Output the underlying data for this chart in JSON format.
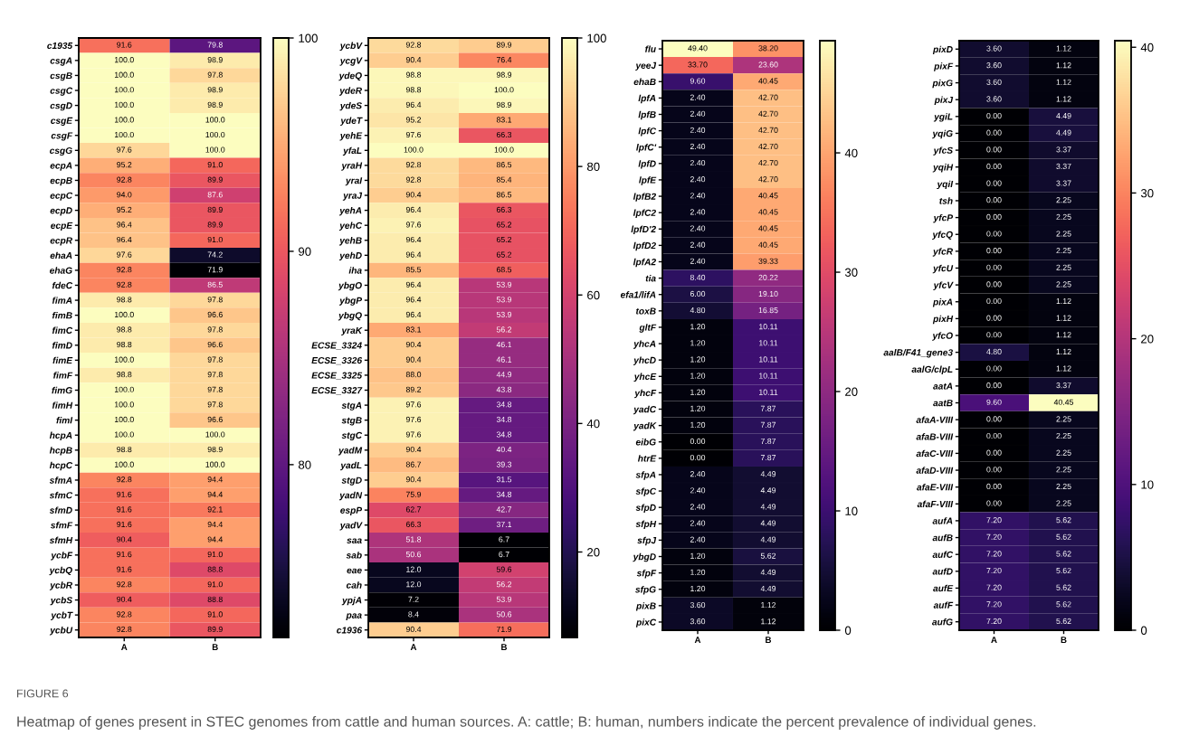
{
  "chart_data": [
    {
      "type": "heatmap",
      "annotations": [
        "FIGURE 6",
        "Heatmap of genes present in STEC genomes from cattle and human sources. A: cattle; B: human, numbers indicate the percent prevalence of individual genes."
      ],
      "categories": [
        "A",
        "B"
      ],
      "y_categories": [
        "c1935",
        "csgA",
        "csgB",
        "csgC",
        "csgD",
        "csgE",
        "csgF",
        "csgG",
        "ecpA",
        "ecpB",
        "ecpC",
        "ecpD",
        "ecpE",
        "ecpR",
        "ehaA",
        "ehaG",
        "fdeC",
        "fimA",
        "fimB",
        "fimC",
        "fimD",
        "fimE",
        "fimF",
        "fimG",
        "fimH",
        "fimI",
        "hcpA",
        "hcpB",
        "hcpC",
        "sfmA",
        "sfmC",
        "sfmD",
        "sfmF",
        "sfmH",
        "ycbF",
        "ycbQ",
        "ycbR",
        "ycbS",
        "ycbT",
        "ycbU"
      ],
      "cells": [
        [
          91.6,
          79.8
        ],
        [
          100.0,
          98.9
        ],
        [
          100.0,
          97.8
        ],
        [
          100.0,
          98.9
        ],
        [
          100.0,
          98.9
        ],
        [
          100.0,
          100.0
        ],
        [
          100.0,
          100.0
        ],
        [
          97.6,
          100.0
        ],
        [
          95.2,
          91.0
        ],
        [
          92.8,
          89.9
        ],
        [
          94.0,
          87.6
        ],
        [
          95.2,
          89.9
        ],
        [
          96.4,
          89.9
        ],
        [
          96.4,
          91.0
        ],
        [
          97.6,
          74.2
        ],
        [
          92.8,
          71.9
        ],
        [
          92.8,
          86.5
        ],
        [
          98.8,
          97.8
        ],
        [
          100.0,
          96.6
        ],
        [
          98.8,
          97.8
        ],
        [
          98.8,
          96.6
        ],
        [
          100.0,
          97.8
        ],
        [
          98.8,
          97.8
        ],
        [
          100.0,
          97.8
        ],
        [
          100.0,
          97.8
        ],
        [
          100.0,
          96.6
        ],
        [
          100.0,
          100.0
        ],
        [
          98.8,
          98.9
        ],
        [
          100.0,
          100.0
        ],
        [
          92.8,
          94.4
        ],
        [
          91.6,
          94.4
        ],
        [
          91.6,
          92.1
        ],
        [
          91.6,
          94.4
        ],
        [
          90.4,
          94.4
        ],
        [
          91.6,
          91.0
        ],
        [
          91.6,
          88.8
        ],
        [
          92.8,
          91.0
        ],
        [
          90.4,
          88.8
        ],
        [
          92.8,
          91.0
        ],
        [
          92.8,
          89.9
        ]
      ],
      "cell_labels": [
        [
          "91.6",
          "79.8"
        ],
        [
          "100.0",
          "98.9"
        ],
        [
          "100.0",
          "97.8"
        ],
        [
          "100.0",
          "98.9"
        ],
        [
          "100.0",
          "98.9"
        ],
        [
          "100.0",
          "100.0"
        ],
        [
          "100.0",
          "100.0"
        ],
        [
          "97.6",
          "100.0"
        ],
        [
          "95.2",
          "91.0"
        ],
        [
          "92.8",
          "89.9"
        ],
        [
          "94.0",
          "87.6"
        ],
        [
          "95.2",
          "89.9"
        ],
        [
          "96.4",
          "89.9"
        ],
        [
          "96.4",
          "91.0"
        ],
        [
          "97.6",
          "74.2"
        ],
        [
          "92.8",
          "71.9"
        ],
        [
          "92.8",
          "86.5"
        ],
        [
          "98.8",
          "97.8"
        ],
        [
          "100.0",
          "96.6"
        ],
        [
          "98.8",
          "97.8"
        ],
        [
          "98.8",
          "96.6"
        ],
        [
          "100.0",
          "97.8"
        ],
        [
          "98.8",
          "97.8"
        ],
        [
          "100.0",
          "97.8"
        ],
        [
          "100.0",
          "97.8"
        ],
        [
          "100.0",
          "96.6"
        ],
        [
          "100.0",
          "100.0"
        ],
        [
          "98.8",
          "98.9"
        ],
        [
          "100.0",
          "100.0"
        ],
        [
          "92.8",
          "94.4"
        ],
        [
          "91.6",
          "94.4"
        ],
        [
          "91.6",
          "92.1"
        ],
        [
          "91.6",
          "94.4"
        ],
        [
          "90.4",
          "94.4"
        ],
        [
          "91.6",
          "91.0"
        ],
        [
          "91.6",
          "88.8"
        ],
        [
          "92.8",
          "91.0"
        ],
        [
          "90.4",
          "88.8"
        ],
        [
          "92.8",
          "91.0"
        ],
        [
          "92.8",
          "89.9"
        ]
      ],
      "clim": [
        71.9,
        100
      ],
      "cticks": [
        80,
        90,
        100
      ]
    },
    {
      "type": "heatmap",
      "categories": [
        "A",
        "B"
      ],
      "y_categories": [
        "ycbV",
        "ycgV",
        "ydeQ",
        "ydeR",
        "ydeS",
        "ydeT",
        "yehE",
        "yfaL",
        "yraH",
        "yraI",
        "yraJ",
        "yehA",
        "yehC",
        "yehB",
        "yehD",
        "iha",
        "ybgO",
        "ybgP",
        "ybgQ",
        "yraK",
        "ECSE_3324",
        "ECSE_3326",
        "ECSE_3325",
        "ECSE_3327",
        "stgA",
        "stgB",
        "stgC",
        "yadM",
        "yadL",
        "stgD",
        "yadN",
        "espP",
        "yadV",
        "saa",
        "sab",
        "eae",
        "cah",
        "ypjA",
        "paa",
        "c1936"
      ],
      "cells": [
        [
          92.8,
          89.9
        ],
        [
          90.4,
          76.4
        ],
        [
          98.8,
          98.9
        ],
        [
          98.8,
          100.0
        ],
        [
          96.4,
          98.9
        ],
        [
          95.2,
          83.1
        ],
        [
          97.6,
          66.3
        ],
        [
          100.0,
          100.0
        ],
        [
          92.8,
          86.5
        ],
        [
          92.8,
          85.4
        ],
        [
          90.4,
          86.5
        ],
        [
          96.4,
          66.3
        ],
        [
          97.6,
          65.2
        ],
        [
          96.4,
          65.2
        ],
        [
          96.4,
          65.2
        ],
        [
          85.5,
          68.5
        ],
        [
          96.4,
          53.9
        ],
        [
          96.4,
          53.9
        ],
        [
          96.4,
          53.9
        ],
        [
          83.1,
          56.2
        ],
        [
          90.4,
          46.1
        ],
        [
          90.4,
          46.1
        ],
        [
          88.0,
          44.9
        ],
        [
          89.2,
          43.8
        ],
        [
          97.6,
          34.8
        ],
        [
          97.6,
          34.8
        ],
        [
          97.6,
          34.8
        ],
        [
          90.4,
          40.4
        ],
        [
          86.7,
          39.3
        ],
        [
          90.4,
          31.5
        ],
        [
          75.9,
          34.8
        ],
        [
          62.7,
          42.7
        ],
        [
          66.3,
          37.1
        ],
        [
          51.8,
          6.7
        ],
        [
          50.6,
          6.7
        ],
        [
          12.0,
          59.6
        ],
        [
          12.0,
          56.2
        ],
        [
          7.2,
          53.9
        ],
        [
          8.4,
          50.6
        ],
        [
          90.4,
          71.9
        ]
      ],
      "cell_labels": [
        [
          "92.8",
          "89.9"
        ],
        [
          "90.4",
          "76.4"
        ],
        [
          "98.8",
          "98.9"
        ],
        [
          "98.8",
          "100.0"
        ],
        [
          "96.4",
          "98.9"
        ],
        [
          "95.2",
          "83.1"
        ],
        [
          "97.6",
          "66.3"
        ],
        [
          "100.0",
          "100.0"
        ],
        [
          "92.8",
          "86.5"
        ],
        [
          "92.8",
          "85.4"
        ],
        [
          "90.4",
          "86.5"
        ],
        [
          "96.4",
          "66.3"
        ],
        [
          "97.6",
          "65.2"
        ],
        [
          "96.4",
          "65.2"
        ],
        [
          "96.4",
          "65.2"
        ],
        [
          "85.5",
          "68.5"
        ],
        [
          "96.4",
          "53.9"
        ],
        [
          "96.4",
          "53.9"
        ],
        [
          "96.4",
          "53.9"
        ],
        [
          "83.1",
          "56.2"
        ],
        [
          "90.4",
          "46.1"
        ],
        [
          "90.4",
          "46.1"
        ],
        [
          "88.0",
          "44.9"
        ],
        [
          "89.2",
          "43.8"
        ],
        [
          "97.6",
          "34.8"
        ],
        [
          "97.6",
          "34.8"
        ],
        [
          "97.6",
          "34.8"
        ],
        [
          "90.4",
          "40.4"
        ],
        [
          "86.7",
          "39.3"
        ],
        [
          "90.4",
          "31.5"
        ],
        [
          "75.9",
          "34.8"
        ],
        [
          "62.7",
          "42.7"
        ],
        [
          "66.3",
          "37.1"
        ],
        [
          "51.8",
          "6.7"
        ],
        [
          "50.6",
          "6.7"
        ],
        [
          "12.0",
          "59.6"
        ],
        [
          "12.0",
          "56.2"
        ],
        [
          "7.2",
          "53.9"
        ],
        [
          "8.4",
          "50.6"
        ],
        [
          "90.4",
          "71.9"
        ]
      ],
      "clim": [
        6.7,
        100
      ],
      "cticks": [
        20,
        40,
        60,
        80,
        100
      ]
    },
    {
      "type": "heatmap",
      "categories": [
        "A",
        "B"
      ],
      "y_categories": [
        "flu",
        "yeeJ",
        "ehaB",
        "lpfA",
        "lpfB",
        "lpfC",
        "lpfC'",
        "lpfD",
        "lpfE",
        "lpfB2",
        "lpfC2",
        "lpfD'2",
        "lpfD2",
        "lpfA2",
        "tia",
        "efa1/lifA",
        "toxB",
        "gltF",
        "yhcA",
        "yhcD",
        "yhcE",
        "yhcF",
        "yadC",
        "yadK",
        "eibG",
        "htrE",
        "sfpA",
        "sfpC",
        "sfpD",
        "sfpH",
        "sfpJ",
        "ybgD",
        "sfpF",
        "sfpG",
        "pixB",
        "pixC"
      ],
      "cells": [
        [
          49.4,
          38.2
        ],
        [
          33.7,
          23.6
        ],
        [
          9.6,
          40.45
        ],
        [
          2.4,
          42.7
        ],
        [
          2.4,
          42.7
        ],
        [
          2.4,
          42.7
        ],
        [
          2.4,
          42.7
        ],
        [
          2.4,
          42.7
        ],
        [
          2.4,
          42.7
        ],
        [
          2.4,
          40.45
        ],
        [
          2.4,
          40.45
        ],
        [
          2.4,
          40.45
        ],
        [
          2.4,
          40.45
        ],
        [
          2.4,
          39.33
        ],
        [
          8.4,
          20.22
        ],
        [
          6.0,
          19.1
        ],
        [
          4.8,
          16.85
        ],
        [
          1.2,
          10.11
        ],
        [
          1.2,
          10.11
        ],
        [
          1.2,
          10.11
        ],
        [
          1.2,
          10.11
        ],
        [
          1.2,
          10.11
        ],
        [
          1.2,
          7.87
        ],
        [
          1.2,
          7.87
        ],
        [
          0.0,
          7.87
        ],
        [
          0.0,
          7.87
        ],
        [
          2.4,
          4.49
        ],
        [
          2.4,
          4.49
        ],
        [
          2.4,
          4.49
        ],
        [
          2.4,
          4.49
        ],
        [
          2.4,
          4.49
        ],
        [
          1.2,
          5.62
        ],
        [
          1.2,
          4.49
        ],
        [
          1.2,
          4.49
        ],
        [
          3.6,
          1.12
        ],
        [
          3.6,
          1.12
        ]
      ],
      "cell_labels": [
        [
          "49.40",
          "38.20"
        ],
        [
          "33.70",
          "23.60"
        ],
        [
          "9.60",
          "40.45"
        ],
        [
          "2.40",
          "42.70"
        ],
        [
          "2.40",
          "42.70"
        ],
        [
          "2.40",
          "42.70"
        ],
        [
          "2.40",
          "42.70"
        ],
        [
          "2.40",
          "42.70"
        ],
        [
          "2.40",
          "42.70"
        ],
        [
          "2.40",
          "40.45"
        ],
        [
          "2.40",
          "40.45"
        ],
        [
          "2.40",
          "40.45"
        ],
        [
          "2.40",
          "40.45"
        ],
        [
          "2.40",
          "39.33"
        ],
        [
          "8.40",
          "20.22"
        ],
        [
          "6.00",
          "19.10"
        ],
        [
          "4.80",
          "16.85"
        ],
        [
          "1.20",
          "10.11"
        ],
        [
          "1.20",
          "10.11"
        ],
        [
          "1.20",
          "10.11"
        ],
        [
          "1.20",
          "10.11"
        ],
        [
          "1.20",
          "10.11"
        ],
        [
          "1.20",
          "7.87"
        ],
        [
          "1.20",
          "7.87"
        ],
        [
          "0.00",
          "7.87"
        ],
        [
          "0.00",
          "7.87"
        ],
        [
          "2.40",
          "4.49"
        ],
        [
          "2.40",
          "4.49"
        ],
        [
          "2.40",
          "4.49"
        ],
        [
          "2.40",
          "4.49"
        ],
        [
          "2.40",
          "4.49"
        ],
        [
          "1.20",
          "5.62"
        ],
        [
          "1.20",
          "4.49"
        ],
        [
          "1.20",
          "4.49"
        ],
        [
          "3.60",
          "1.12"
        ],
        [
          "3.60",
          "1.12"
        ]
      ],
      "clim": [
        0,
        49.4
      ],
      "cticks": [
        0,
        10,
        20,
        30,
        40
      ]
    },
    {
      "type": "heatmap",
      "categories": [
        "A",
        "B"
      ],
      "y_categories": [
        "pixD",
        "pixF",
        "pixG",
        "pixJ",
        "ygiL",
        "yqiG",
        "yfcS",
        "yqiH",
        "yqiI",
        "tsh",
        "yfcP",
        "yfcQ",
        "yfcR",
        "yfcU",
        "yfcV",
        "pixA",
        "pixH",
        "yfcO",
        "aalB/F41_gene3",
        "aalG/clpL",
        "aatA",
        "aatB",
        "afaA-VIII",
        "afaB-VIII",
        "afaC-VIII",
        "afaD-VIII",
        "afaE-VIII",
        "afaF-VIII",
        "aufA",
        "aufB",
        "aufC",
        "aufD",
        "aufE",
        "aufF",
        "aufG"
      ],
      "cells": [
        [
          3.6,
          1.12
        ],
        [
          3.6,
          1.12
        ],
        [
          3.6,
          1.12
        ],
        [
          3.6,
          1.12
        ],
        [
          0.0,
          4.49
        ],
        [
          0.0,
          4.49
        ],
        [
          0.0,
          3.37
        ],
        [
          0.0,
          3.37
        ],
        [
          0.0,
          3.37
        ],
        [
          0.0,
          2.25
        ],
        [
          0.0,
          2.25
        ],
        [
          0.0,
          2.25
        ],
        [
          0.0,
          2.25
        ],
        [
          0.0,
          2.25
        ],
        [
          0.0,
          2.25
        ],
        [
          0.0,
          1.12
        ],
        [
          0.0,
          1.12
        ],
        [
          0.0,
          1.12
        ],
        [
          4.8,
          1.12
        ],
        [
          0.0,
          1.12
        ],
        [
          0.0,
          3.37
        ],
        [
          9.6,
          40.45
        ],
        [
          0.0,
          2.25
        ],
        [
          0.0,
          2.25
        ],
        [
          0.0,
          2.25
        ],
        [
          0.0,
          2.25
        ],
        [
          0.0,
          2.25
        ],
        [
          0.0,
          2.25
        ],
        [
          7.2,
          5.62
        ],
        [
          7.2,
          5.62
        ],
        [
          7.2,
          5.62
        ],
        [
          7.2,
          5.62
        ],
        [
          7.2,
          5.62
        ],
        [
          7.2,
          5.62
        ],
        [
          7.2,
          5.62
        ]
      ],
      "cell_labels": [
        [
          "3.60",
          "1.12"
        ],
        [
          "3.60",
          "1.12"
        ],
        [
          "3.60",
          "1.12"
        ],
        [
          "3.60",
          "1.12"
        ],
        [
          "0.00",
          "4.49"
        ],
        [
          "0.00",
          "4.49"
        ],
        [
          "0.00",
          "3.37"
        ],
        [
          "0.00",
          "3.37"
        ],
        [
          "0.00",
          "3.37"
        ],
        [
          "0.00",
          "2.25"
        ],
        [
          "0.00",
          "2.25"
        ],
        [
          "0.00",
          "2.25"
        ],
        [
          "0.00",
          "2.25"
        ],
        [
          "0.00",
          "2.25"
        ],
        [
          "0.00",
          "2.25"
        ],
        [
          "0.00",
          "1.12"
        ],
        [
          "0.00",
          "1.12"
        ],
        [
          "0.00",
          "1.12"
        ],
        [
          "4.80",
          "1.12"
        ],
        [
          "0.00",
          "1.12"
        ],
        [
          "0.00",
          "3.37"
        ],
        [
          "9.60",
          "40.45"
        ],
        [
          "0.00",
          "2.25"
        ],
        [
          "0.00",
          "2.25"
        ],
        [
          "0.00",
          "2.25"
        ],
        [
          "0.00",
          "2.25"
        ],
        [
          "0.00",
          "2.25"
        ],
        [
          "0.00",
          "2.25"
        ],
        [
          "7.20",
          "5.62"
        ],
        [
          "7.20",
          "5.62"
        ],
        [
          "7.20",
          "5.62"
        ],
        [
          "7.20",
          "5.62"
        ],
        [
          "7.20",
          "5.62"
        ],
        [
          "7.20",
          "5.62"
        ],
        [
          "7.20",
          "5.62"
        ]
      ],
      "clim": [
        0,
        40.45
      ],
      "cticks": [
        0,
        10,
        20,
        30,
        40
      ]
    }
  ]
}
